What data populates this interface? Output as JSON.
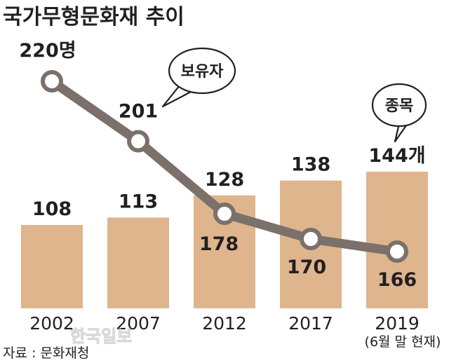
{
  "chart_data": {
    "type": "bar",
    "title": "국가무형문화재 추이",
    "categories": [
      "2002",
      "2007",
      "2012",
      "2017",
      "2019"
    ],
    "category_note": "(6월 말 현재)",
    "series": [
      {
        "name": "종목",
        "values": [
          108,
          113,
          128,
          138,
          144
        ],
        "labels": [
          "108",
          "113",
          "128",
          "138",
          "144개"
        ]
      },
      {
        "name": "보유자",
        "type": "line",
        "values": [
          220,
          201,
          178,
          170,
          166
        ],
        "labels": [
          "220명",
          "201",
          "178",
          "170",
          "166"
        ]
      }
    ],
    "source": "자료 : 문화재청",
    "colors": {
      "bar": "#dfb58e",
      "line": "#7b706a",
      "text": "#231f20"
    }
  },
  "watermark": "한국일보"
}
